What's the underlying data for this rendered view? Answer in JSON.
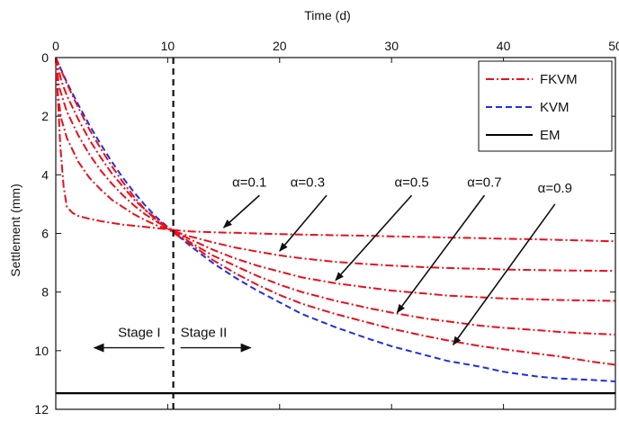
{
  "chart_data": {
    "type": "line",
    "title": "",
    "xlabel": "Time (d)",
    "ylabel": "Settlement (mm)",
    "xlim": [
      0,
      50
    ],
    "ylim": [
      12,
      0
    ],
    "y_inverted": true,
    "x_axis_position": "top",
    "x_ticks": [
      0,
      10,
      20,
      30,
      40,
      50
    ],
    "x_tick_labels": [
      "0",
      "10",
      "20",
      "30",
      "40",
      "50"
    ],
    "y_ticks": [
      0,
      2,
      4,
      6,
      8,
      10,
      12
    ],
    "y_tick_labels": [
      "0",
      "2",
      "4",
      "6",
      "8",
      "10",
      "12"
    ],
    "grid": false,
    "legend": {
      "position": "top-right",
      "entries": [
        {
          "name": "FKVM",
          "color": "#e8101c",
          "dash": "dashdot"
        },
        {
          "name": "KVM",
          "color": "#1f2fe0",
          "dash": "dashed"
        },
        {
          "name": "EM",
          "color": "#000000",
          "dash": "solid"
        }
      ]
    },
    "stage_divider": {
      "x": 10.5,
      "labels": [
        "Stage I",
        "Stage II"
      ],
      "y": 9.9
    },
    "series": [
      {
        "name": "KVM",
        "color": "#1f2fe0",
        "dash": "dashed",
        "x": [
          0,
          1,
          2,
          3,
          4,
          5,
          6,
          7,
          8,
          9,
          10,
          11,
          12,
          14,
          16,
          18,
          20,
          22,
          25,
          28,
          30,
          33,
          35,
          38,
          40,
          43,
          45,
          48,
          50
        ],
        "y": [
          0,
          0.85,
          1.6,
          2.3,
          2.95,
          3.55,
          4.1,
          4.6,
          5.05,
          5.45,
          5.78,
          6.1,
          6.42,
          7.0,
          7.5,
          7.95,
          8.35,
          8.75,
          9.2,
          9.6,
          9.85,
          10.15,
          10.35,
          10.55,
          10.72,
          10.88,
          10.95,
          11.0,
          11.05
        ]
      },
      {
        "name": "α=0.9",
        "color": "#e8101c",
        "dash": "dashdot",
        "x": [
          0,
          1,
          2,
          3,
          4,
          5,
          6,
          7,
          8,
          9,
          10,
          11,
          12,
          14,
          16,
          18,
          20,
          22,
          25,
          28,
          30,
          33,
          35,
          38,
          40,
          43,
          45,
          48,
          50
        ],
        "y": [
          0,
          0.9,
          1.7,
          2.45,
          3.1,
          3.7,
          4.25,
          4.75,
          5.2,
          5.55,
          5.85,
          6.1,
          6.35,
          6.9,
          7.35,
          7.75,
          8.1,
          8.4,
          8.75,
          9.05,
          9.25,
          9.5,
          9.65,
          9.85,
          9.95,
          10.1,
          10.2,
          10.38,
          10.48
        ]
      },
      {
        "name": "α=0.7",
        "color": "#e8101c",
        "dash": "dashdot",
        "x": [
          0,
          0.5,
          1,
          2,
          3,
          4,
          5,
          6,
          7,
          8,
          9,
          10,
          11,
          12,
          14,
          16,
          18,
          20,
          22,
          25,
          28,
          30,
          33,
          35,
          38,
          40,
          43,
          45,
          48,
          50
        ],
        "y": [
          0,
          0.8,
          1.3,
          2.1,
          2.8,
          3.4,
          3.95,
          4.4,
          4.85,
          5.2,
          5.5,
          5.8,
          6.05,
          6.3,
          6.75,
          7.1,
          7.45,
          7.75,
          8.0,
          8.3,
          8.55,
          8.7,
          8.9,
          9.0,
          9.15,
          9.22,
          9.3,
          9.36,
          9.42,
          9.45
        ]
      },
      {
        "name": "α=0.5",
        "color": "#e8101c",
        "dash": "dashdot",
        "x": [
          0,
          0.3,
          0.7,
          1,
          2,
          3,
          4,
          5,
          6,
          7,
          8,
          9,
          10,
          11,
          12,
          14,
          16,
          18,
          20,
          22,
          25,
          28,
          30,
          33,
          35,
          38,
          40,
          43,
          45,
          48,
          50
        ],
        "y": [
          0,
          1.0,
          1.5,
          1.85,
          2.65,
          3.3,
          3.85,
          4.3,
          4.7,
          5.05,
          5.35,
          5.6,
          5.8,
          6.0,
          6.2,
          6.55,
          6.85,
          7.1,
          7.3,
          7.5,
          7.7,
          7.85,
          7.95,
          8.05,
          8.12,
          8.18,
          8.22,
          8.25,
          8.27,
          8.29,
          8.3
        ]
      },
      {
        "name": "α=0.3",
        "color": "#e8101c",
        "dash": "dashdot",
        "x": [
          0,
          0.2,
          0.5,
          1,
          2,
          3,
          4,
          5,
          6,
          7,
          8,
          9,
          10,
          11,
          12,
          14,
          16,
          18,
          20,
          22,
          25,
          28,
          30,
          33,
          35,
          38,
          40,
          43,
          45,
          48,
          50
        ],
        "y": [
          0,
          1.3,
          2.1,
          2.75,
          3.55,
          4.1,
          4.5,
          4.85,
          5.1,
          5.35,
          5.55,
          5.72,
          5.85,
          5.98,
          6.1,
          6.3,
          6.48,
          6.62,
          6.75,
          6.85,
          6.97,
          7.05,
          7.1,
          7.15,
          7.18,
          7.21,
          7.23,
          7.25,
          7.26,
          7.27,
          7.28
        ]
      },
      {
        "name": "α=0.1",
        "color": "#e8101c",
        "dash": "dashdot",
        "x": [
          0,
          0.2,
          0.4,
          0.7,
          1,
          1.5,
          2,
          3,
          4,
          5,
          6,
          7,
          8,
          9,
          10,
          11,
          12,
          14,
          16,
          18,
          20,
          22,
          25,
          28,
          30,
          33,
          35,
          38,
          40,
          43,
          45,
          48,
          50
        ],
        "y": [
          0,
          1.5,
          3.0,
          4.4,
          5.1,
          5.3,
          5.4,
          5.5,
          5.58,
          5.64,
          5.7,
          5.74,
          5.78,
          5.82,
          5.86,
          5.9,
          5.93,
          5.96,
          5.98,
          6.0,
          6.02,
          6.04,
          6.06,
          6.08,
          6.1,
          6.12,
          6.14,
          6.16,
          6.18,
          6.2,
          6.22,
          6.25,
          6.27
        ]
      },
      {
        "name": "EM",
        "color": "#000000",
        "dash": "solid",
        "x": [
          0,
          50
        ],
        "y": [
          11.45,
          11.45
        ]
      }
    ],
    "annotations": [
      {
        "text": "α=0.1",
        "label_x": 17.3,
        "label_y": 4.4,
        "arrow_from_x": 18.2,
        "arrow_from_y": 4.7,
        "arrow_to_x": 15.0,
        "arrow_to_y": 5.8
      },
      {
        "text": "α=0.3",
        "label_x": 22.5,
        "label_y": 4.4,
        "arrow_from_x": 24.2,
        "arrow_from_y": 4.7,
        "arrow_to_x": 20.0,
        "arrow_to_y": 6.6
      },
      {
        "text": "α=0.5",
        "label_x": 31.8,
        "label_y": 4.4,
        "arrow_from_x": 31.8,
        "arrow_from_y": 4.7,
        "arrow_to_x": 25.0,
        "arrow_to_y": 7.6
      },
      {
        "text": "α=0.7",
        "label_x": 38.3,
        "label_y": 4.4,
        "arrow_from_x": 38.3,
        "arrow_from_y": 4.7,
        "arrow_to_x": 30.5,
        "arrow_to_y": 8.7
      },
      {
        "text": "α=0.9",
        "label_x": 44.6,
        "label_y": 4.6,
        "arrow_from_x": 44.6,
        "arrow_from_y": 5.0,
        "arrow_to_x": 35.5,
        "arrow_to_y": 9.8
      }
    ]
  }
}
